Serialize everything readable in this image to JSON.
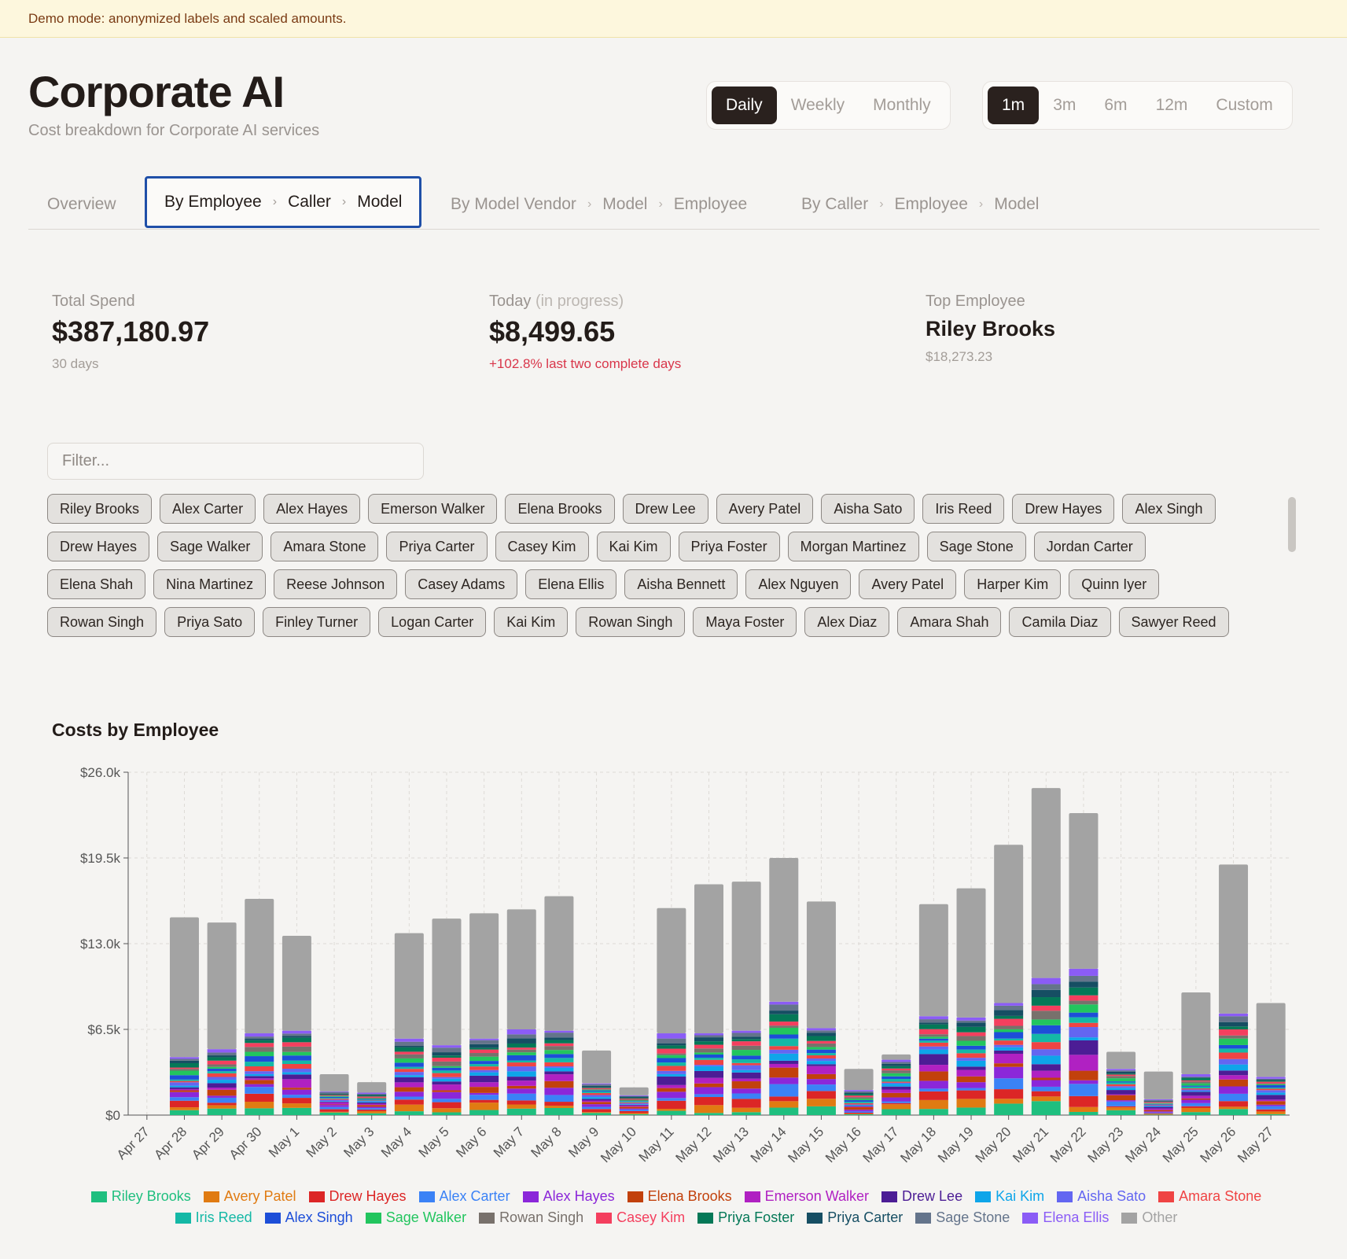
{
  "banner": "Demo mode: anonymized labels and scaled amounts.",
  "header": {
    "title": "Corporate AI",
    "subtitle": "Cost breakdown for Corporate AI services"
  },
  "granularity": [
    "Daily",
    "Weekly",
    "Monthly"
  ],
  "granularity_selected": "Daily",
  "range": [
    "1m",
    "3m",
    "6m",
    "12m",
    "Custom"
  ],
  "range_selected": "1m",
  "tabs": {
    "overview": "Overview",
    "emp": [
      "By Employee",
      "Caller",
      "Model"
    ],
    "vendor": [
      "By Model Vendor",
      "Model",
      "Employee"
    ],
    "caller": [
      "By Caller",
      "Employee",
      "Model"
    ]
  },
  "kpis": {
    "total": {
      "label": "Total Spend",
      "value": "$387,180.97",
      "sub": "30 days"
    },
    "today": {
      "label": "Today",
      "label_note": "(in progress)",
      "value": "$8,499.65",
      "sub": "+102.8% last two complete days"
    },
    "top": {
      "label": "Top Employee",
      "value": "Riley Brooks",
      "sub": "$18,273.23"
    }
  },
  "filter": {
    "placeholder": "Filter..."
  },
  "chips": [
    [
      "Riley Brooks",
      "Alex Carter",
      "Alex Hayes",
      "Emerson Walker",
      "Elena Brooks",
      "Drew Lee",
      "Avery Patel",
      "Aisha Sato",
      "Iris Reed",
      "Drew Hayes",
      "Alex Singh"
    ],
    [
      "Drew Hayes",
      "Sage Walker",
      "Amara Stone",
      "Priya Carter",
      "Casey Kim",
      "Kai Kim",
      "Priya Foster",
      "Morgan Martinez",
      "Sage Stone",
      "Jordan Carter"
    ],
    [
      "Elena Shah",
      "Nina Martinez",
      "Reese Johnson",
      "Casey Adams",
      "Elena Ellis",
      "Aisha Bennett",
      "Alex Nguyen",
      "Avery Patel",
      "Harper Kim",
      "Quinn Iyer"
    ],
    [
      "Rowan Singh",
      "Priya Sato",
      "Finley Turner",
      "Logan Carter",
      "Kai Kim",
      "Rowan Singh",
      "Maya Foster",
      "Alex Diaz",
      "Amara Shah",
      "Camila Diaz",
      "Sawyer Reed"
    ]
  ],
  "chart_data": {
    "type": "bar",
    "stacked": true,
    "title": "Costs by Employee",
    "y_ticks": [
      "$0",
      "$6.5k",
      "$13.0k",
      "$19.5k",
      "$26.0k"
    ],
    "ylim": [
      0,
      26000
    ],
    "categories": [
      "Apr 27",
      "Apr 28",
      "Apr 29",
      "Apr 30",
      "May 1",
      "May 2",
      "May 3",
      "May 4",
      "May 5",
      "May 6",
      "May 7",
      "May 8",
      "May 9",
      "May 10",
      "May 11",
      "May 12",
      "May 13",
      "May 14",
      "May 15",
      "May 16",
      "May 17",
      "May 18",
      "May 19",
      "May 20",
      "May 21",
      "May 22",
      "May 23",
      "May 24",
      "May 25",
      "May 26",
      "May 27"
    ],
    "totals": [
      0,
      15000,
      14600,
      16400,
      13600,
      3100,
      2500,
      13800,
      14900,
      15300,
      15600,
      16600,
      4900,
      2100,
      15700,
      17500,
      17700,
      19500,
      16200,
      3500,
      4600,
      16000,
      17200,
      20500,
      24800,
      22900,
      4800,
      3300,
      9300,
      19000,
      8500
    ],
    "other": [
      0,
      10600,
      9600,
      10200,
      7200,
      1300,
      800,
      8000,
      9600,
      9500,
      9100,
      10200,
      2500,
      600,
      9500,
      11300,
      11300,
      10900,
      9600,
      1600,
      400,
      8500,
      9800,
      12000,
      14400,
      11800,
      1300,
      2100,
      6200,
      11300,
      5600
    ],
    "series": [
      {
        "name": "Riley Brooks",
        "color": "#1fbf7f"
      },
      {
        "name": "Avery Patel",
        "color": "#e07b12"
      },
      {
        "name": "Drew Hayes",
        "color": "#dc2626"
      },
      {
        "name": "Alex Carter",
        "color": "#3b82f6"
      },
      {
        "name": "Alex Hayes",
        "color": "#8b27d9"
      },
      {
        "name": "Elena Brooks",
        "color": "#c2410c"
      },
      {
        "name": "Emerson Walker",
        "color": "#b021c2"
      },
      {
        "name": "Drew Lee",
        "color": "#4c1d95"
      },
      {
        "name": "Kai Kim",
        "color": "#0ea5e9"
      },
      {
        "name": "Aisha Sato",
        "color": "#6366f1"
      },
      {
        "name": "Amara Stone",
        "color": "#ef4444"
      },
      {
        "name": "Iris Reed",
        "color": "#14b8a6"
      },
      {
        "name": "Alex Singh",
        "color": "#1d4ed8"
      },
      {
        "name": "Sage Walker",
        "color": "#22c55e"
      },
      {
        "name": "Rowan Singh",
        "color": "#78716c"
      },
      {
        "name": "Casey Kim",
        "color": "#f43f5e"
      },
      {
        "name": "Priya Foster",
        "color": "#047857"
      },
      {
        "name": "Priya Carter",
        "color": "#164e63"
      },
      {
        "name": "Sage Stone",
        "color": "#64748b"
      },
      {
        "name": "Elena Ellis",
        "color": "#8b5cf6"
      },
      {
        "name": "Other",
        "color": "#a3a3a3"
      }
    ],
    "legend_rows": [
      [
        "Riley Brooks",
        "Avery Patel",
        "Drew Hayes",
        "Alex Carter",
        "Alex Hayes",
        "Elena Brooks",
        "Emerson Walker",
        "Drew Lee",
        "Kai Kim",
        "Aisha Sato",
        "Amara Stone"
      ],
      [
        "Iris Reed",
        "Alex Singh",
        "Sage Walker",
        "Rowan Singh",
        "Casey Kim",
        "Priya Foster",
        "Priya Carter",
        "Sage Stone",
        "Elena Ellis",
        "Other"
      ]
    ]
  }
}
